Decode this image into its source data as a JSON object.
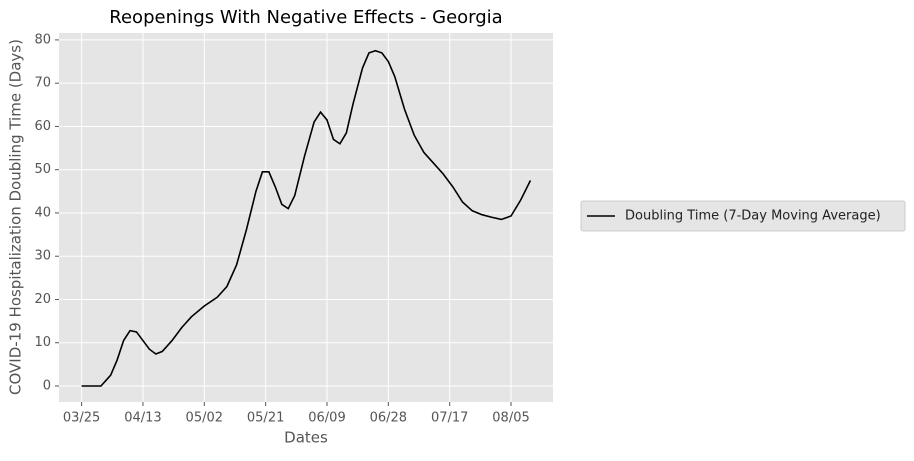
{
  "chart_data": {
    "type": "line",
    "title": "Reopenings With Negative Effects - Georgia",
    "x_label": "Dates",
    "y_label": "COVID-19 Hospitalization Doubling Time (Days)",
    "x": [
      "03/25",
      "03/28",
      "03/31",
      "04/03",
      "04/05",
      "04/07",
      "04/09",
      "04/11",
      "04/13",
      "04/15",
      "04/17",
      "04/19",
      "04/22",
      "04/25",
      "04/28",
      "05/02",
      "05/06",
      "05/09",
      "05/12",
      "05/15",
      "05/18",
      "05/20",
      "05/22",
      "05/24",
      "05/26",
      "05/28",
      "05/30",
      "06/02",
      "06/05",
      "06/07",
      "06/09",
      "06/11",
      "06/13",
      "06/15",
      "06/17",
      "06/20",
      "06/22",
      "06/24",
      "06/26",
      "06/28",
      "06/30",
      "07/03",
      "07/06",
      "07/09",
      "07/12",
      "07/15",
      "07/18",
      "07/21",
      "07/24",
      "07/27",
      "07/30",
      "08/02",
      "08/05",
      "08/08",
      "08/11"
    ],
    "series": [
      {
        "name": "Doubling Time (7-Day Moving Average)",
        "color": "#000000",
        "values": [
          0,
          0,
          0,
          2.5,
          6,
          10.5,
          12.8,
          12.5,
          10.5,
          8.5,
          7.4,
          8,
          10.5,
          13.5,
          16,
          18.5,
          20.5,
          23,
          28,
          36,
          45,
          49.5,
          49.5,
          46,
          42,
          41,
          44,
          53,
          61,
          63.3,
          61.5,
          57,
          56,
          58.5,
          65,
          73.5,
          77,
          77.5,
          77,
          75,
          71.5,
          64,
          58,
          54,
          51.5,
          49,
          46,
          42.5,
          40.5,
          39.6,
          39,
          38.5,
          39.3,
          43,
          47.5
        ]
      }
    ],
    "xlim": [
      "03/18",
      "08/18"
    ],
    "xticks": [
      "03/25",
      "04/13",
      "05/02",
      "05/21",
      "06/09",
      "06/28",
      "07/17",
      "08/05"
    ],
    "ylim": [
      -3.7,
      81.6
    ],
    "yticks": [
      0,
      10,
      20,
      30,
      40,
      50,
      60,
      70,
      80
    ],
    "grid": true,
    "legend": "right"
  }
}
